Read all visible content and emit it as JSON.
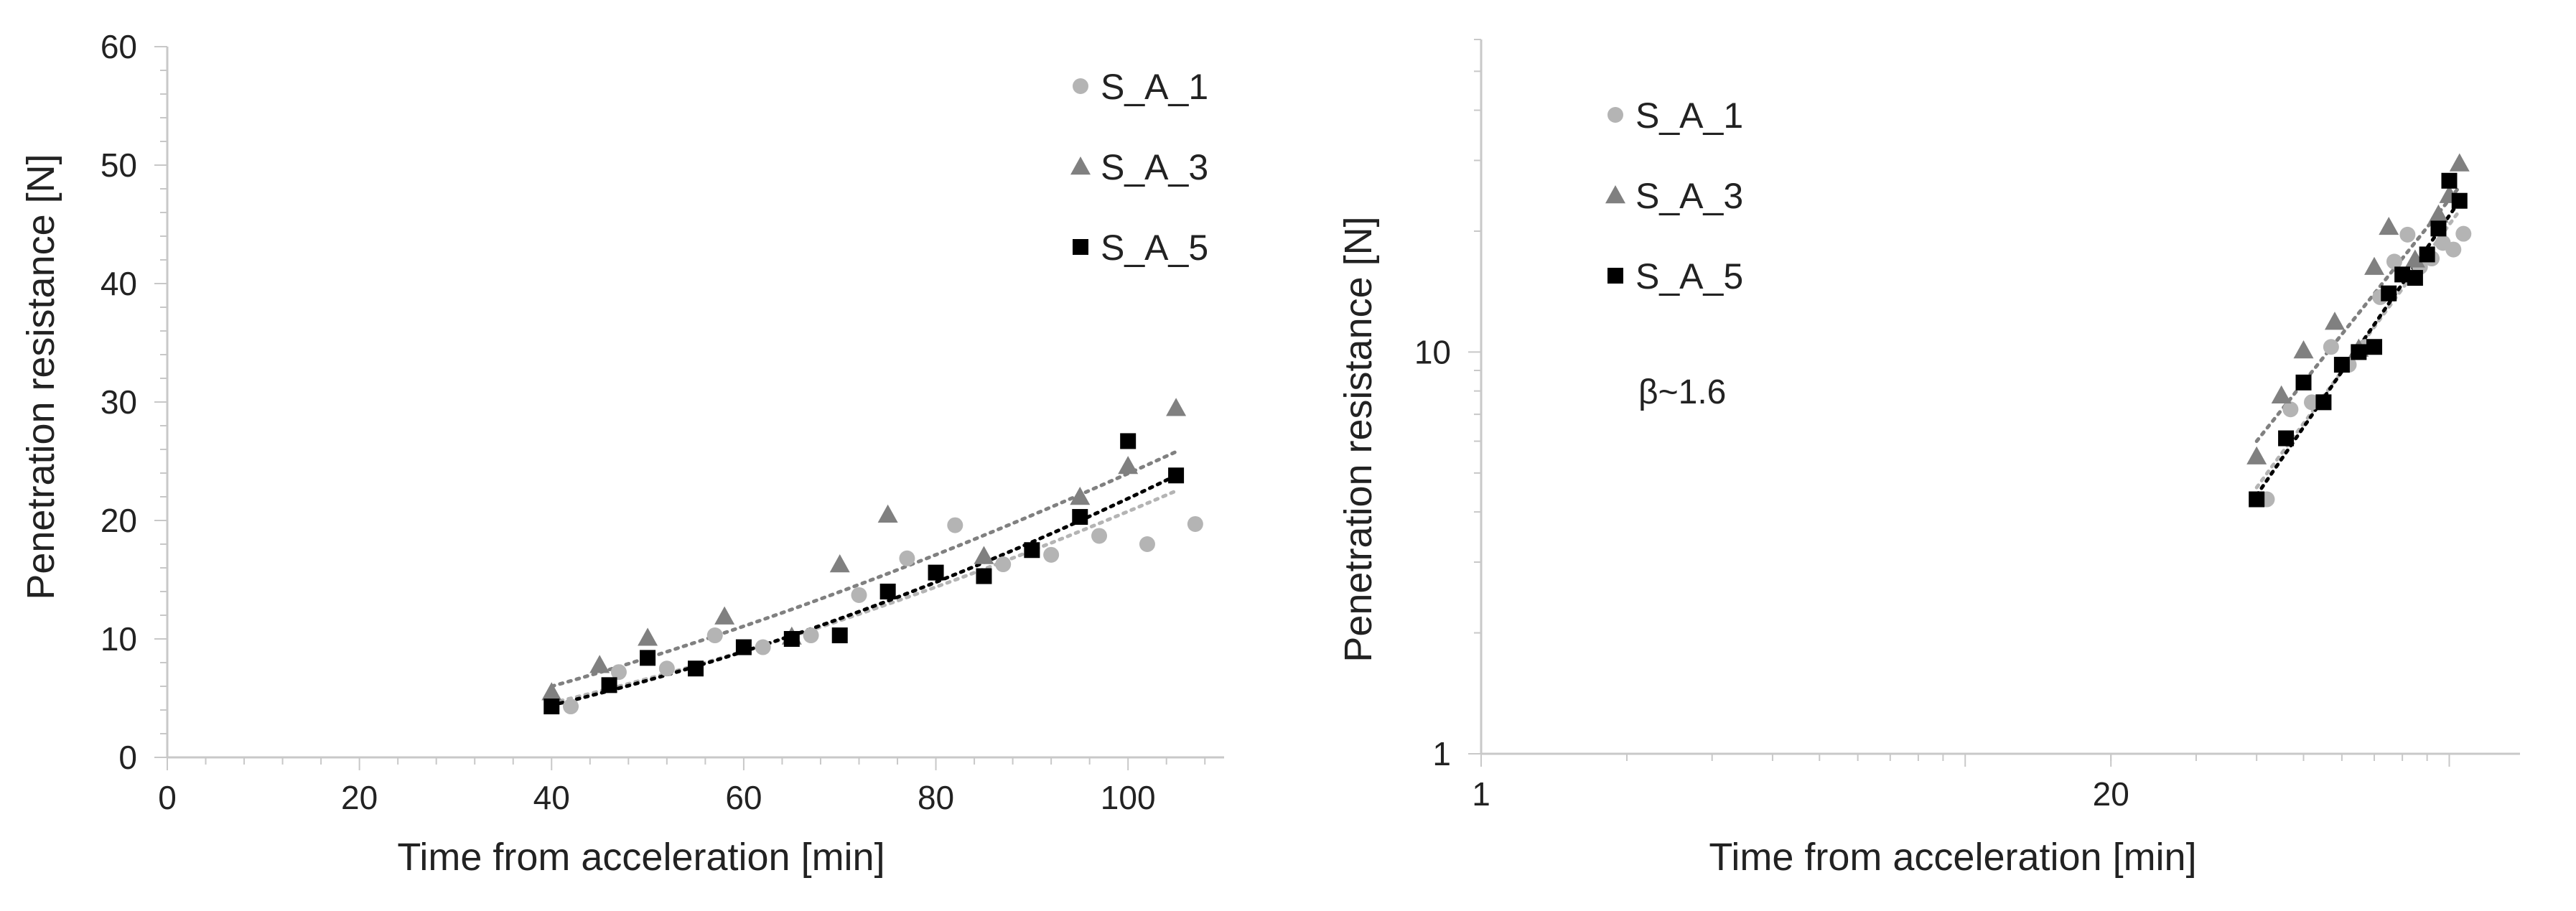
{
  "colors": {
    "S_A_1": "#b4b4b4",
    "S_A_3": "#808080",
    "S_A_5": "#000000",
    "axis": "#c8c8c8",
    "text": "#222222"
  },
  "chart_data": [
    {
      "type": "scatter",
      "xlabel": "Time from acceleration [min]",
      "ylabel": "Penetration resistance [N]",
      "xlim": [
        0,
        110
      ],
      "ylim": [
        0,
        60
      ],
      "xticks": [
        0,
        20,
        40,
        60,
        80,
        100
      ],
      "xtick_labels": [
        "0",
        "20",
        "40",
        "60",
        "80",
        "100"
      ],
      "yticks": [
        0,
        10,
        20,
        30,
        40,
        50,
        60
      ],
      "ytick_labels": [
        "0",
        "10",
        "20",
        "30",
        "40",
        "50",
        "60"
      ],
      "legend": [
        "S_A_1",
        "S_A_3",
        "S_A_5"
      ],
      "legend_position": "top-right",
      "series": [
        {
          "name": "S_A_1",
          "marker": "circle",
          "x": [
            42,
            47,
            52,
            57,
            62,
            67,
            72,
            77,
            82,
            87,
            92,
            97,
            102,
            107
          ],
          "y": [
            4.3,
            7.2,
            7.5,
            10.3,
            9.3,
            10.3,
            13.7,
            16.8,
            19.6,
            16.3,
            17.1,
            18.7,
            18.0,
            19.7
          ],
          "trend": {
            "x_start": 40,
            "x_end": 105,
            "y_start": 4.6,
            "y_end": 22.5
          }
        },
        {
          "name": "S_A_3",
          "marker": "triangle",
          "x": [
            40,
            45,
            50,
            58,
            65,
            70,
            75,
            85,
            95,
            100,
            105
          ],
          "y": [
            5.5,
            7.8,
            10.1,
            11.9,
            10.2,
            16.3,
            20.5,
            17.0,
            22.0,
            24.6,
            29.5
          ],
          "trend": {
            "x_start": 40,
            "x_end": 105,
            "y_start": 6.0,
            "y_end": 25.8
          }
        },
        {
          "name": "S_A_5",
          "marker": "square",
          "x": [
            40,
            46,
            50,
            55,
            60,
            65,
            70,
            75,
            80,
            85,
            90,
            95,
            100,
            105
          ],
          "y": [
            4.3,
            6.1,
            8.4,
            7.5,
            9.3,
            10.0,
            10.3,
            14.0,
            15.6,
            15.3,
            17.5,
            20.3,
            26.7,
            23.8
          ],
          "trend": {
            "x_start": 40,
            "x_end": 105,
            "y_start": 4.4,
            "y_end": 23.8
          }
        }
      ]
    },
    {
      "type": "scatter",
      "scale": "log-log",
      "xlabel": "Time from acceleration [min]",
      "ylabel": "Penetration resistance [N]",
      "xlim": [
        1,
        140
      ],
      "ylim": [
        1,
        60
      ],
      "xticks": [
        1,
        20
      ],
      "xtick_labels": [
        "1",
        "20"
      ],
      "yticks": [
        1,
        10
      ],
      "ytick_labels": [
        "1",
        "10"
      ],
      "legend": [
        "S_A_1",
        "S_A_3",
        "S_A_5"
      ],
      "legend_position": "top-left",
      "annotation": "β~1.6",
      "series": [
        {
          "name": "S_A_1",
          "marker": "circle",
          "x": [
            42,
            47,
            52,
            57,
            62,
            67,
            72,
            77,
            82,
            87,
            92,
            97,
            102,
            107
          ],
          "y": [
            4.3,
            7.2,
            7.5,
            10.3,
            9.3,
            10.3,
            13.7,
            16.8,
            19.6,
            16.3,
            17.1,
            18.7,
            18.0,
            19.7
          ],
          "trend": {
            "x_start": 40,
            "x_end": 105,
            "y_start": 4.6,
            "y_end": 22.5
          }
        },
        {
          "name": "S_A_3",
          "marker": "triangle",
          "x": [
            40,
            45,
            50,
            58,
            65,
            70,
            75,
            85,
            95,
            100,
            105
          ],
          "y": [
            5.5,
            7.8,
            10.1,
            11.9,
            10.2,
            16.3,
            20.5,
            17.0,
            22.0,
            24.6,
            29.5
          ],
          "trend": {
            "x_start": 40,
            "x_end": 105,
            "y_start": 6.0,
            "y_end": 25.8
          }
        },
        {
          "name": "S_A_5",
          "marker": "square",
          "x": [
            40,
            46,
            50,
            55,
            60,
            65,
            70,
            75,
            80,
            85,
            90,
            95,
            100,
            105
          ],
          "y": [
            4.3,
            6.1,
            8.4,
            7.5,
            9.3,
            10.0,
            10.3,
            14.0,
            15.6,
            15.3,
            17.5,
            20.3,
            26.7,
            23.8
          ],
          "trend": {
            "x_start": 40,
            "x_end": 105,
            "y_start": 4.4,
            "y_end": 23.8
          }
        }
      ]
    }
  ]
}
